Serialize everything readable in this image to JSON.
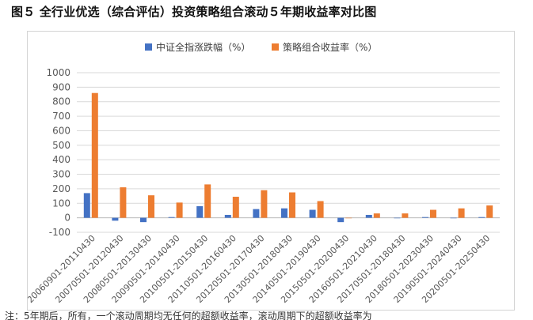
{
  "figure": {
    "title": "图５ 全行业优选（综合评估）投资策略组合滚动５年期收益率对比图",
    "note": "注：5年期后，所有，一个滚动周期均无任何的超额收益率，滚动周期下的超额收益率为"
  },
  "colors": {
    "series1": "#4472C4",
    "series2": "#ED7D31",
    "grid": "#d9d9d9",
    "axis": "#bfbfbf"
  },
  "chart_data": {
    "type": "bar",
    "title": "",
    "xlabel": "",
    "ylabel": "",
    "ylim": [
      -100,
      1000
    ],
    "yticks": [
      "-100",
      "0",
      "100",
      "200",
      "300",
      "400",
      "500",
      "600",
      "700",
      "800",
      "900",
      "1000"
    ],
    "grid": true,
    "legend_position": "top",
    "categories": [
      "20060901-20110430",
      "20070501-20120430",
      "20080501-20130430",
      "20090501-20140430",
      "20100501-20150430",
      "20110501-20160430",
      "20120501-20170430",
      "20130501-20180430",
      "20140501-20190430",
      "20150501-20200430",
      "20160501-20210430",
      "20170501-20180430",
      "20180501-20230430",
      "20190501-20240430",
      "20200501-20250430"
    ],
    "series": [
      {
        "name": "中证全指涨跌幅（%）",
        "values": [
          170,
          -20,
          -30,
          5,
          80,
          20,
          60,
          65,
          55,
          -30,
          20,
          0,
          5,
          0,
          5
        ]
      },
      {
        "name": "策略组合收益率（%）",
        "values": [
          860,
          210,
          155,
          105,
          230,
          145,
          190,
          175,
          115,
          0,
          30,
          30,
          55,
          65,
          85
        ]
      }
    ]
  }
}
